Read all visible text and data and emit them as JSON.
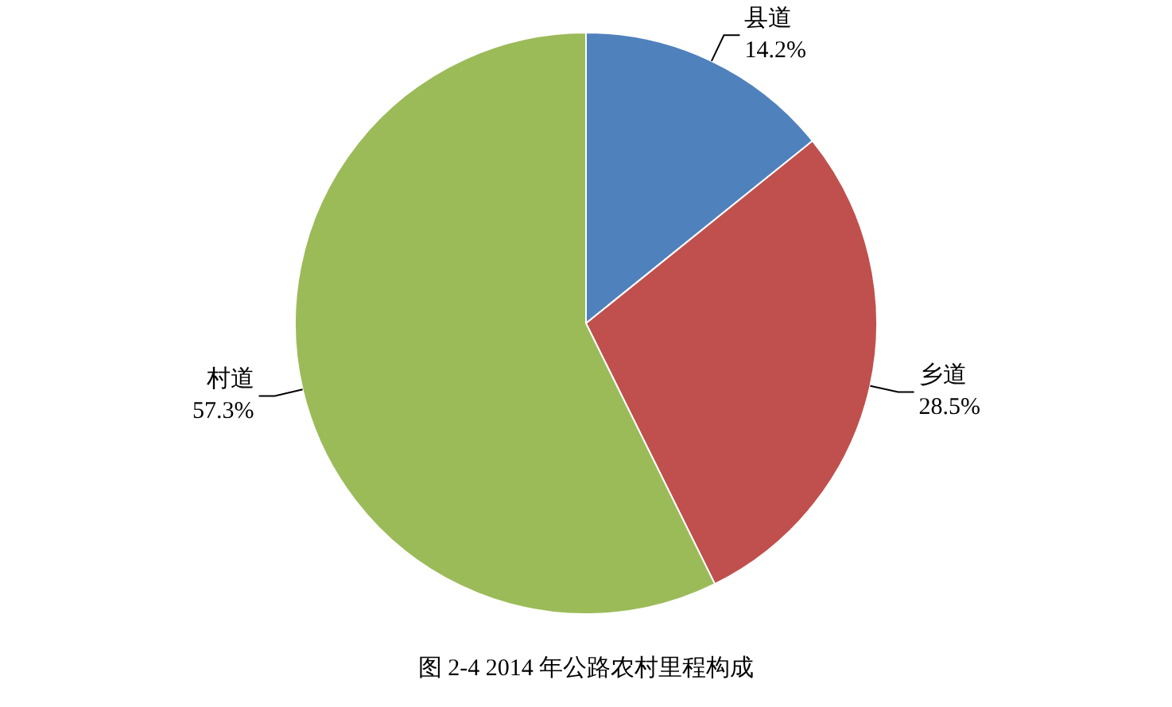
{
  "chart_data": {
    "type": "pie",
    "title": "图 2-4 2014 年公路农村里程构成",
    "categories": [
      "县道",
      "乡道",
      "村道"
    ],
    "values": [
      14.2,
      28.5,
      57.3
    ],
    "value_labels": [
      "14.2%",
      "28.5%",
      "57.3%"
    ],
    "colors": [
      "#4f81bd",
      "#c0504d",
      "#9bbb59"
    ],
    "legend": false
  }
}
